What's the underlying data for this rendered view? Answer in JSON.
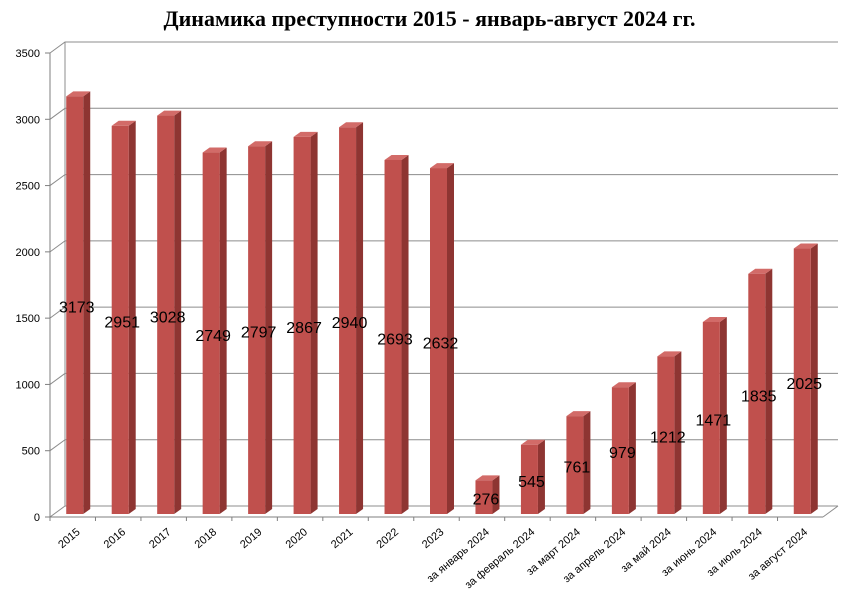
{
  "chart_data": {
    "type": "bar",
    "title": "Динамика преступности 2015 - январь-август 2024 гг.",
    "xlabel": "",
    "ylabel": "",
    "ylim": [
      0,
      3500
    ],
    "yticks": [
      "0",
      "500",
      "1000",
      "1500",
      "2000",
      "2500",
      "3000",
      "3500"
    ],
    "grid": true,
    "categories": [
      "2015",
      "2016",
      "2017",
      "2018",
      "2019",
      "2020",
      "2021",
      "2022",
      "2023",
      "за январь 2024",
      "за февраль 2024",
      "за март 2024",
      "за апрель 2024",
      "за май 2024",
      "за июнь 2024",
      "за июль 2024",
      "за август 2024"
    ],
    "values": [
      3173,
      2951,
      3028,
      2749,
      2797,
      2867,
      2940,
      2693,
      2632,
      276,
      545,
      761,
      979,
      1212,
      1471,
      1835,
      2025
    ],
    "data_labels": [
      "3173",
      "2951",
      "3028",
      "2749",
      "2797",
      "2867",
      "2940",
      "2693",
      "2632",
      "276",
      "545",
      "761",
      "979",
      "1212",
      "1471",
      "1835",
      "2025"
    ],
    "colors": {
      "bar_front": "#C0504D",
      "bar_side": "#8E3532",
      "bar_top": "#D26B68",
      "grid": "#8C8C8C",
      "axis": "#7F7F7F"
    }
  }
}
